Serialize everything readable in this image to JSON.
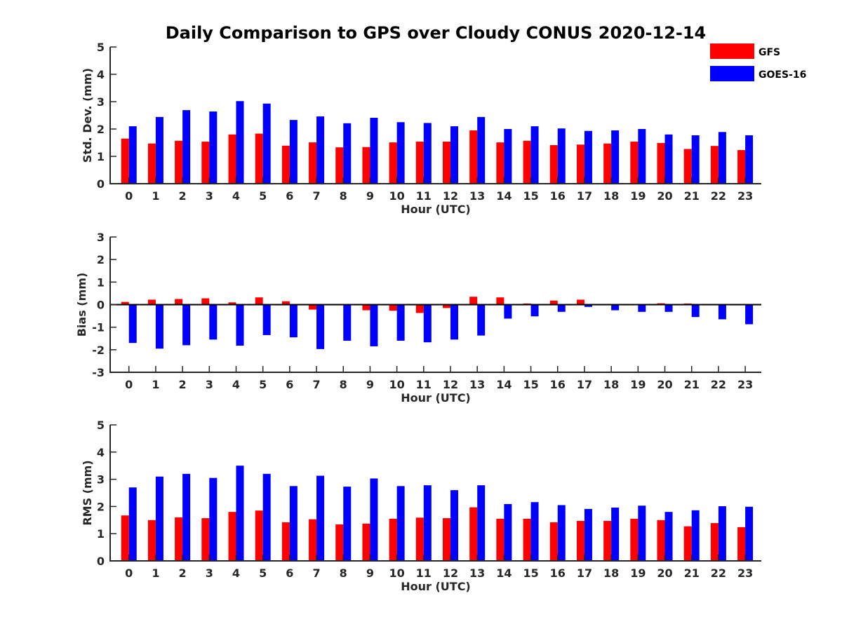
{
  "title": "Daily Comparison to GPS over Cloudy CONUS 2020-12-14",
  "legend": [
    {
      "name": "GFS",
      "color": "#ff0000"
    },
    {
      "name": "GOES-16",
      "color": "#0000ff"
    }
  ],
  "chart_data": [
    {
      "type": "bar",
      "ylabel": "Std. Dev. (mm)",
      "xlabel": "Hour (UTC)",
      "ylim": [
        0,
        5
      ],
      "yticks": [
        0,
        1,
        2,
        3,
        4,
        5
      ],
      "categories": [
        "0",
        "1",
        "2",
        "3",
        "4",
        "5",
        "6",
        "7",
        "8",
        "9",
        "10",
        "11",
        "12",
        "13",
        "14",
        "15",
        "16",
        "17",
        "18",
        "19",
        "20",
        "21",
        "22",
        "23"
      ],
      "series": [
        {
          "name": "GFS",
          "color": "#ff0000",
          "values": [
            1.65,
            1.47,
            1.57,
            1.54,
            1.8,
            1.83,
            1.39,
            1.51,
            1.33,
            1.34,
            1.51,
            1.54,
            1.54,
            1.95,
            1.51,
            1.57,
            1.41,
            1.43,
            1.47,
            1.54,
            1.49,
            1.27,
            1.38,
            1.23
          ]
        },
        {
          "name": "GOES-16",
          "color": "#0000ff",
          "values": [
            2.1,
            2.44,
            2.69,
            2.64,
            3.02,
            2.93,
            2.33,
            2.46,
            2.21,
            2.41,
            2.25,
            2.22,
            2.1,
            2.44,
            2.0,
            2.1,
            2.02,
            1.93,
            1.95,
            2.0,
            1.8,
            1.77,
            1.89,
            1.77
          ]
        }
      ]
    },
    {
      "type": "bar",
      "ylabel": "Bias (mm)",
      "xlabel": "Hour (UTC)",
      "ylim": [
        -3,
        3
      ],
      "yticks": [
        -3,
        -2,
        -1,
        0,
        1,
        2,
        3
      ],
      "zero_line": true,
      "categories": [
        "0",
        "1",
        "2",
        "3",
        "4",
        "5",
        "6",
        "7",
        "8",
        "9",
        "10",
        "11",
        "12",
        "13",
        "14",
        "15",
        "16",
        "17",
        "18",
        "19",
        "20",
        "21",
        "22",
        "23"
      ],
      "series": [
        {
          "name": "GFS",
          "color": "#ff0000",
          "values": [
            0.12,
            0.22,
            0.25,
            0.28,
            0.1,
            0.32,
            0.15,
            -0.22,
            -0.03,
            -0.25,
            -0.27,
            -0.37,
            -0.15,
            0.35,
            0.32,
            0.05,
            0.18,
            0.22,
            0.03,
            0.0,
            0.06,
            0.05,
            0.03,
            -0.03
          ]
        },
        {
          "name": "GOES-16",
          "color": "#0000ff",
          "values": [
            -1.7,
            -1.95,
            -1.8,
            -1.55,
            -1.82,
            -1.35,
            -1.45,
            -1.97,
            -1.6,
            -1.85,
            -1.6,
            -1.67,
            -1.55,
            -1.37,
            -0.62,
            -0.52,
            -0.32,
            -0.1,
            -0.25,
            -0.32,
            -0.32,
            -0.55,
            -0.65,
            -0.87
          ]
        }
      ]
    },
    {
      "type": "bar",
      "ylabel": "RMS (mm)",
      "xlabel": "Hour (UTC)",
      "ylim": [
        0,
        5
      ],
      "yticks": [
        0,
        1,
        2,
        3,
        4,
        5
      ],
      "categories": [
        "0",
        "1",
        "2",
        "3",
        "4",
        "5",
        "6",
        "7",
        "8",
        "9",
        "10",
        "11",
        "12",
        "13",
        "14",
        "15",
        "16",
        "17",
        "18",
        "19",
        "20",
        "21",
        "22",
        "23"
      ],
      "series": [
        {
          "name": "GFS",
          "color": "#ff0000",
          "values": [
            1.67,
            1.5,
            1.6,
            1.57,
            1.8,
            1.85,
            1.42,
            1.53,
            1.34,
            1.37,
            1.55,
            1.59,
            1.57,
            1.97,
            1.55,
            1.55,
            1.42,
            1.47,
            1.47,
            1.55,
            1.5,
            1.27,
            1.39,
            1.24
          ]
        },
        {
          "name": "GOES-16",
          "color": "#0000ff",
          "values": [
            2.7,
            3.1,
            3.2,
            3.05,
            3.5,
            3.2,
            2.75,
            3.13,
            2.73,
            3.03,
            2.75,
            2.78,
            2.6,
            2.78,
            2.09,
            2.16,
            2.05,
            1.91,
            1.96,
            2.03,
            1.8,
            1.86,
            2.01,
            1.99
          ]
        }
      ]
    }
  ]
}
